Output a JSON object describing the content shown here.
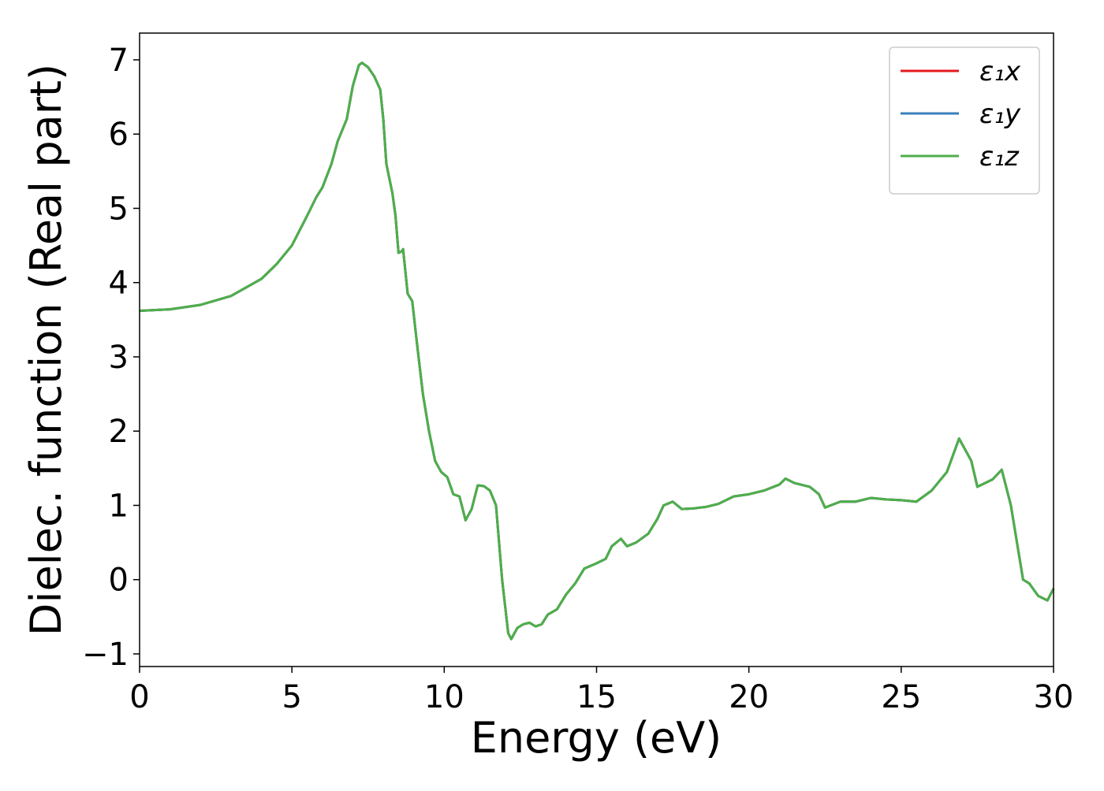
{
  "chart_data": {
    "type": "line",
    "xlabel": "Energy (eV)",
    "ylabel": "Dielec. function (Real part)",
    "xlim": [
      0,
      30
    ],
    "xticks": [
      0,
      5,
      10,
      15,
      20,
      25,
      30
    ],
    "ylim": [
      -1.17,
      7.36
    ],
    "yticks": [
      {
        "value": -1,
        "label": "−1"
      },
      0,
      1,
      2,
      3,
      4,
      5,
      6,
      7
    ],
    "legend": "upper right",
    "grid": false,
    "x": [
      0,
      1,
      2,
      3,
      4,
      4.5,
      5,
      5.5,
      5.8,
      6,
      6.3,
      6.5,
      6.8,
      7,
      7.2,
      7.3,
      7.5,
      7.7,
      7.9,
      8,
      8.1,
      8.3,
      8.4,
      8.5,
      8.6,
      8.65,
      8.8,
      8.95,
      9.1,
      9.3,
      9.5,
      9.7,
      9.9,
      10.1,
      10.3,
      10.5,
      10.7,
      10.9,
      11.1,
      11.3,
      11.5,
      11.7,
      11.9,
      12.1,
      12.2,
      12.4,
      12.6,
      12.8,
      13,
      13.2,
      13.4,
      13.7,
      14,
      14.3,
      14.6,
      15,
      15.3,
      15.5,
      15.8,
      16,
      16.3,
      16.7,
      17,
      17.2,
      17.5,
      17.8,
      18.2,
      18.6,
      19,
      19.5,
      20,
      20.5,
      21,
      21.2,
      21.5,
      22,
      22.3,
      22.5,
      23,
      23.5,
      24,
      24.5,
      25,
      25.5,
      26,
      26.5,
      26.9,
      27.3,
      27.5,
      28,
      28.3,
      28.6,
      29,
      29.2,
      29.5,
      29.8,
      30
    ],
    "series": [
      {
        "name": "ε₁x",
        "color": "#e41a1c",
        "values": [
          3.62,
          3.64,
          3.7,
          3.82,
          4.05,
          4.25,
          4.5,
          4.9,
          5.15,
          5.28,
          5.6,
          5.9,
          6.2,
          6.65,
          6.93,
          6.96,
          6.9,
          6.78,
          6.6,
          6.2,
          5.6,
          5.2,
          4.9,
          4.4,
          4.42,
          4.45,
          3.85,
          3.75,
          3.2,
          2.5,
          2.0,
          1.6,
          1.45,
          1.38,
          1.15,
          1.12,
          0.8,
          0.95,
          1.27,
          1.26,
          1.2,
          1.0,
          0.0,
          -0.72,
          -0.8,
          -0.65,
          -0.6,
          -0.58,
          -0.63,
          -0.6,
          -0.47,
          -0.4,
          -0.2,
          -0.05,
          0.15,
          0.22,
          0.28,
          0.45,
          0.55,
          0.45,
          0.5,
          0.62,
          0.82,
          1.0,
          1.05,
          0.95,
          0.96,
          0.98,
          1.02,
          1.12,
          1.15,
          1.2,
          1.28,
          1.36,
          1.3,
          1.25,
          1.15,
          0.97,
          1.05,
          1.05,
          1.1,
          1.08,
          1.07,
          1.05,
          1.2,
          1.45,
          1.9,
          1.6,
          1.25,
          1.35,
          1.48,
          1.0,
          0.0,
          -0.05,
          -0.22,
          -0.28,
          -0.12
        ]
      },
      {
        "name": "ε₁y",
        "color": "#377eb8",
        "values": [
          3.62,
          3.64,
          3.7,
          3.82,
          4.05,
          4.25,
          4.5,
          4.9,
          5.15,
          5.28,
          5.6,
          5.9,
          6.2,
          6.65,
          6.93,
          6.96,
          6.9,
          6.78,
          6.6,
          6.2,
          5.6,
          5.2,
          4.9,
          4.4,
          4.42,
          4.45,
          3.85,
          3.75,
          3.2,
          2.5,
          2.0,
          1.6,
          1.45,
          1.38,
          1.15,
          1.12,
          0.8,
          0.95,
          1.27,
          1.26,
          1.2,
          1.0,
          0.0,
          -0.72,
          -0.8,
          -0.65,
          -0.6,
          -0.58,
          -0.63,
          -0.6,
          -0.47,
          -0.4,
          -0.2,
          -0.05,
          0.15,
          0.22,
          0.28,
          0.45,
          0.55,
          0.45,
          0.5,
          0.62,
          0.82,
          1.0,
          1.05,
          0.95,
          0.96,
          0.98,
          1.02,
          1.12,
          1.15,
          1.2,
          1.28,
          1.36,
          1.3,
          1.25,
          1.15,
          0.97,
          1.05,
          1.05,
          1.1,
          1.08,
          1.07,
          1.05,
          1.2,
          1.45,
          1.9,
          1.6,
          1.25,
          1.35,
          1.48,
          1.0,
          0.0,
          -0.05,
          -0.22,
          -0.28,
          -0.12
        ]
      },
      {
        "name": "ε₁z",
        "color": "#4daf4a",
        "values": [
          3.62,
          3.64,
          3.7,
          3.82,
          4.05,
          4.25,
          4.5,
          4.9,
          5.15,
          5.28,
          5.6,
          5.9,
          6.2,
          6.65,
          6.93,
          6.96,
          6.9,
          6.78,
          6.6,
          6.2,
          5.6,
          5.2,
          4.9,
          4.4,
          4.42,
          4.45,
          3.85,
          3.75,
          3.2,
          2.5,
          2.0,
          1.6,
          1.45,
          1.38,
          1.15,
          1.12,
          0.8,
          0.95,
          1.27,
          1.26,
          1.2,
          1.0,
          0.0,
          -0.72,
          -0.8,
          -0.65,
          -0.6,
          -0.58,
          -0.63,
          -0.6,
          -0.47,
          -0.4,
          -0.2,
          -0.05,
          0.15,
          0.22,
          0.28,
          0.45,
          0.55,
          0.45,
          0.5,
          0.62,
          0.82,
          1.0,
          1.05,
          0.95,
          0.96,
          0.98,
          1.02,
          1.12,
          1.15,
          1.2,
          1.28,
          1.36,
          1.3,
          1.25,
          1.15,
          0.97,
          1.05,
          1.05,
          1.1,
          1.08,
          1.07,
          1.05,
          1.2,
          1.45,
          1.9,
          1.6,
          1.25,
          1.35,
          1.48,
          1.0,
          0.0,
          -0.05,
          -0.22,
          -0.28,
          -0.12
        ]
      }
    ]
  }
}
